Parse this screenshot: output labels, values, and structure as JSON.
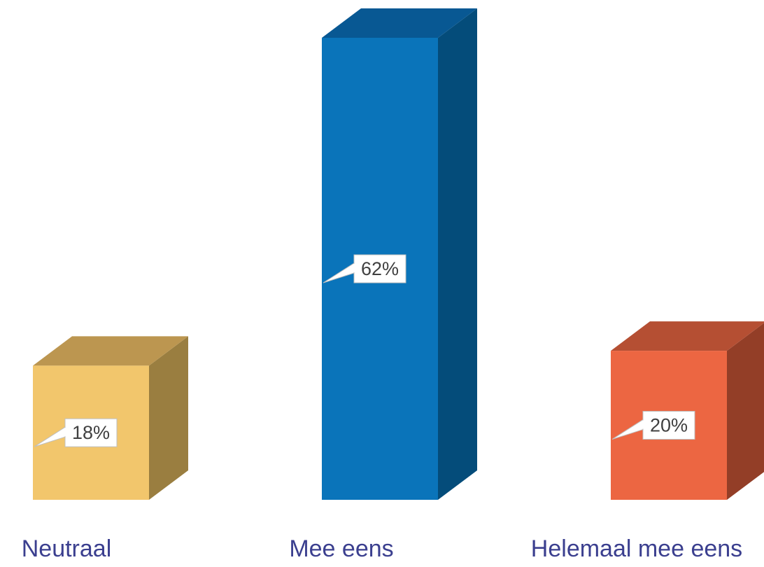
{
  "chart_data": {
    "type": "bar",
    "style": "3d",
    "categories": [
      "Neutraal",
      "Mee eens",
      "Helemaal mee eens"
    ],
    "values": [
      18,
      62,
      20
    ],
    "value_labels": [
      "18%",
      "62%",
      "20%"
    ],
    "unit": "%",
    "ylim": [
      0,
      62
    ],
    "grid": false,
    "legend": "none",
    "colors": [
      {
        "front": "#F2C66C",
        "top": "#BC9650",
        "side": "#9A7E40"
      },
      {
        "front": "#0A74BA",
        "top": "#085893",
        "side": "#044C7A"
      },
      {
        "front": "#EC6642",
        "top": "#B54F33",
        "side": "#933E27"
      }
    ],
    "label_color": "#3b3f8f"
  }
}
